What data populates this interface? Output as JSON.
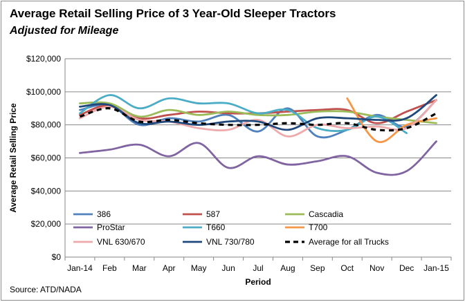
{
  "chart_data": {
    "type": "line",
    "title": "Average Retail Selling Price of 3 Year-Old Sleeper Tractors",
    "subtitle": "Adjusted for Mileage",
    "source": "Source: ATD/NADA",
    "xlabel": "Period",
    "ylabel": "Average Retail Selling Price",
    "ylim": [
      0,
      120000
    ],
    "yticks": [
      0,
      20000,
      40000,
      60000,
      80000,
      100000,
      120000
    ],
    "ytick_labels": [
      "$0",
      "$20,000",
      "$40,000",
      "$60,000",
      "$80,000",
      "$100,000",
      "$120,000"
    ],
    "categories": [
      "Jan-14",
      "Feb",
      "Mar",
      "Apr",
      "May",
      "Jun",
      "Jul",
      "Aug",
      "Sep",
      "Oct",
      "Nov",
      "Dec",
      "Jan-15"
    ],
    "grid": "horizontal",
    "legend_position": "bottom-inside",
    "series": [
      {
        "name": "386",
        "color": "#4f81bd",
        "dash": "solid",
        "values": [
          89000,
          92000,
          80000,
          84000,
          82000,
          86000,
          76000,
          90000,
          73000,
          77000,
          86000,
          79000,
          95000
        ]
      },
      {
        "name": "587",
        "color": "#c0504d",
        "dash": "solid",
        "values": [
          86000,
          92000,
          84000,
          86000,
          88000,
          87000,
          87000,
          88000,
          89000,
          89000,
          81000,
          88000,
          95000
        ]
      },
      {
        "name": "Cascadia",
        "color": "#9bbb59",
        "dash": "solid",
        "values": [
          93000,
          93000,
          85000,
          89000,
          86000,
          88000,
          86000,
          86000,
          88000,
          88000,
          85000,
          83000,
          81000
        ]
      },
      {
        "name": "ProStar",
        "color": "#8064a2",
        "dash": "solid",
        "values": [
          63000,
          65000,
          68000,
          61000,
          69000,
          54000,
          61000,
          56000,
          58000,
          61000,
          51000,
          52000,
          70000
        ]
      },
      {
        "name": "T660",
        "color": "#4bacc6",
        "dash": "solid",
        "values": [
          87000,
          98000,
          90000,
          96000,
          93000,
          93000,
          87000,
          89000,
          78000,
          77000,
          85000,
          75000,
          null
        ]
      },
      {
        "name": "T700",
        "color": "#f79646",
        "dash": "solid",
        "values": [
          null,
          null,
          null,
          null,
          null,
          null,
          null,
          null,
          null,
          96000,
          70000,
          80000,
          84000
        ]
      },
      {
        "name": "VNL 630/670",
        "color": "#eea9aa",
        "dash": "solid",
        "values": [
          84000,
          91000,
          83000,
          82000,
          78000,
          77000,
          83000,
          73000,
          80000,
          78000,
          79000,
          78000,
          95000
        ]
      },
      {
        "name": "VNL 730/780",
        "color": "#1f497d",
        "dash": "solid",
        "values": [
          91000,
          92000,
          81000,
          82000,
          80000,
          82000,
          82000,
          77000,
          84000,
          84000,
          83000,
          84000,
          98000
        ]
      },
      {
        "name": "Average for all Trucks",
        "color": "#000000",
        "dash": "dashed",
        "values": [
          85000,
          90000,
          82000,
          83000,
          81000,
          80000,
          80000,
          81000,
          80000,
          81000,
          77000,
          78000,
          87000
        ]
      }
    ]
  }
}
